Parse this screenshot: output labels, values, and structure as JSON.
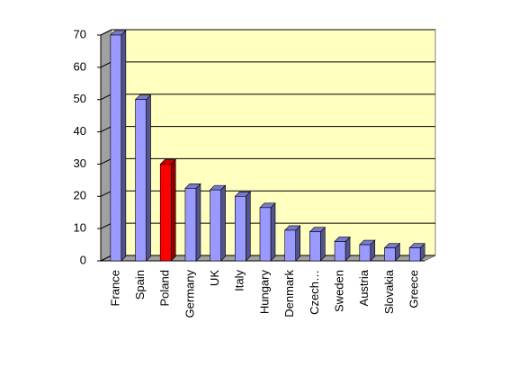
{
  "chart_data": {
    "type": "bar",
    "categories": [
      "France",
      "Spain",
      "Poland",
      "Germany",
      "UK",
      "Italy",
      "Hungary",
      "Denmark",
      "Czech…",
      "Sweden",
      "Austria",
      "Slovakia",
      "Greece"
    ],
    "values": [
      70,
      50,
      30,
      22.5,
      22,
      20,
      16.5,
      9.5,
      9,
      6,
      5,
      4,
      4
    ],
    "colors": [
      "#9999ff",
      "#9999ff",
      "#ff0000",
      "#9999ff",
      "#9999ff",
      "#9999ff",
      "#9999ff",
      "#9999ff",
      "#9999ff",
      "#9999ff",
      "#9999ff",
      "#9999ff",
      "#9999ff"
    ],
    "ylim": [
      0,
      70
    ],
    "yticks": [
      0,
      10,
      20,
      30,
      40,
      50,
      60,
      70
    ],
    "grid": true
  }
}
